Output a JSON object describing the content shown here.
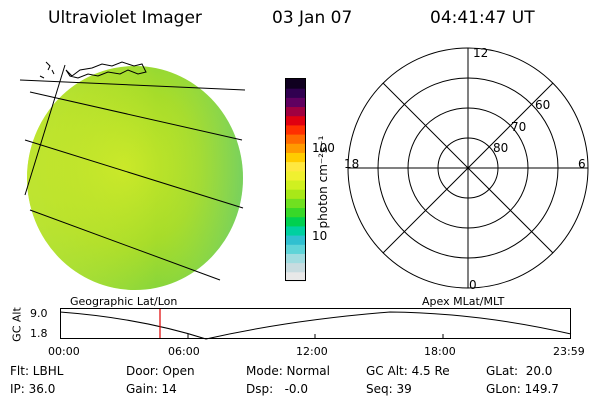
{
  "header": {
    "title": "Ultraviolet Imager",
    "date": "03 Jan 07",
    "time": "04:41:47 UT"
  },
  "globe_caption": "Geographic Lat/Lon",
  "polar_caption": "Apex MLat/MLT",
  "colorbar": {
    "unit_label": "photon cm⁻²s⁻¹",
    "ticks": [
      {
        "label": "100",
        "value": 100
      },
      {
        "label": "10",
        "value": 10
      }
    ],
    "colors": [
      "#e8e8e8",
      "#c8dce0",
      "#a0dce0",
      "#5fd4d8",
      "#30c0d0",
      "#00d0a0",
      "#00d050",
      "#38d828",
      "#70e020",
      "#a8e818",
      "#d0f020",
      "#f0f030",
      "#ffe840",
      "#ffcc00",
      "#ff9a00",
      "#ff6a00",
      "#ff3000",
      "#e00010",
      "#a00040",
      "#600060",
      "#300050",
      "#100020"
    ]
  },
  "polar": {
    "ring_labels": [
      {
        "label": "80",
        "lat": 80
      },
      {
        "label": "70",
        "lat": 70
      },
      {
        "label": "60",
        "lat": 60
      }
    ],
    "mlt_labels": [
      {
        "label": "12",
        "mlt": 12
      },
      {
        "label": "18",
        "mlt": 18
      },
      {
        "label": "6",
        "mlt": 6
      },
      {
        "label": "0",
        "mlt": 0
      }
    ]
  },
  "altitude_plot": {
    "y_axis_label": "GC Alt",
    "y_ticks": [
      "9.0",
      "1.8"
    ],
    "x_ticks": [
      "00:00",
      "06:00",
      "12:00",
      "18:00",
      "23:59"
    ],
    "current_time_marker": "04:41:47"
  },
  "footer": {
    "flt": "Flt: LBHL",
    "ip": "IP: 36.0",
    "door": "Door: Open",
    "gain": "Gain: 14",
    "mode": "Mode: Normal",
    "dsp": "Dsp:   -0.0",
    "gc_alt": "GC Alt: 4.5 Re",
    "seq": "Seq: 39",
    "glat": "GLat:  20.0",
    "glon": "GLon: 149.7"
  }
}
